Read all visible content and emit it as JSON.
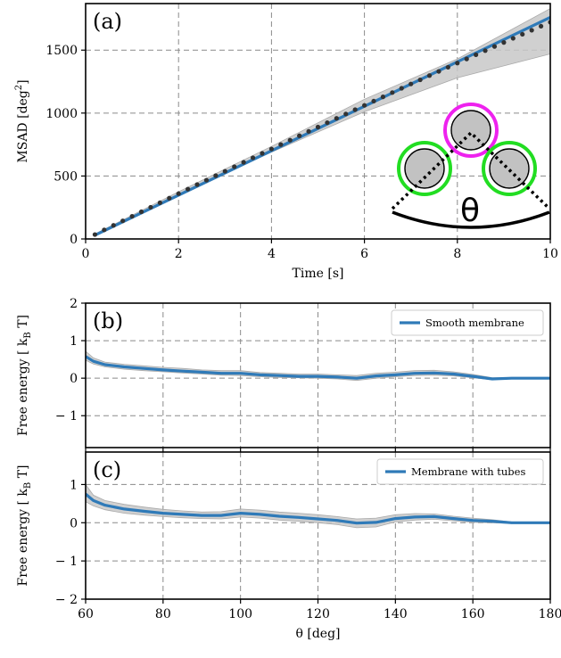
{
  "chart_data": [
    {
      "type": "line",
      "panel_label": "(a)",
      "xlabel": "Time [s]",
      "ylabel": "MSAD [deg",
      "ylabel_sup": "2",
      "ylabel_end": "]",
      "xlim": [
        0,
        10
      ],
      "ylim": [
        0,
        1870
      ],
      "xticks": [
        0,
        2,
        4,
        6,
        8,
        10
      ],
      "yticks": [
        0,
        500,
        1000,
        1500
      ],
      "grid": true,
      "series": [
        {
          "style": "solid",
          "color": "#2f7ab8",
          "x": [
            0.2,
            10
          ],
          "y": [
            30,
            1760
          ]
        },
        {
          "style": "dotted-markers",
          "color": "#333333",
          "x": [
            0.2,
            0.4,
            0.6,
            0.8,
            1.0,
            1.2,
            1.4,
            1.6,
            1.8,
            2.0,
            2.2,
            2.4,
            2.6,
            2.8,
            3.0,
            3.2,
            3.4,
            3.6,
            3.8,
            4.0,
            4.2,
            4.4,
            4.6,
            4.8,
            5.0,
            5.2,
            5.4,
            5.6,
            5.8,
            6.0,
            6.2,
            6.4,
            6.6,
            6.8,
            7.0,
            7.2,
            7.4,
            7.6,
            7.8,
            8.0,
            8.2,
            8.4,
            8.6,
            8.8,
            9.0,
            9.2,
            9.4,
            9.6,
            9.8,
            10.0
          ],
          "y": [
            35,
            72,
            108,
            144,
            180,
            216,
            252,
            288,
            324,
            360,
            396,
            432,
            467,
            503,
            538,
            574,
            609,
            645,
            680,
            715,
            750,
            785,
            820,
            855,
            889,
            924,
            958,
            993,
            1027,
            1061,
            1095,
            1129,
            1163,
            1197,
            1231,
            1264,
            1298,
            1331,
            1364,
            1397,
            1430,
            1463,
            1496,
            1529,
            1561,
            1594,
            1626,
            1658,
            1690,
            1722
          ]
        }
      ],
      "band": {
        "x": [
          0.2,
          2,
          4,
          6,
          8,
          10
        ],
        "lower": [
          28,
          350,
          690,
          1010,
          1280,
          1470
        ],
        "upper": [
          40,
          375,
          735,
          1110,
          1430,
          1830
        ]
      },
      "inset": {
        "label": "θ",
        "beads": [
          "#22dd22",
          "#ee22ee",
          "#22dd22"
        ]
      }
    },
    {
      "type": "line",
      "panel_label": "(b)",
      "ylabel_prefix": "Free energy [",
      "ylabel_unit": "k",
      "ylabel_sub": "B",
      "ylabel_end": "T]",
      "xlim": [
        60,
        180
      ],
      "ylim": [
        -1.85,
        2
      ],
      "xticks": [
        60,
        80,
        100,
        120,
        140,
        160,
        180
      ],
      "yticks": [
        -1,
        0,
        1,
        2
      ],
      "ytick_labels": [
        "− 1",
        "0",
        "1",
        "2"
      ],
      "grid": true,
      "legend": "Smooth membrane",
      "legend_loc": "upper-right",
      "series": [
        {
          "name": "Smooth membrane",
          "color": "#2f7ab8",
          "x": [
            60,
            62,
            65,
            70,
            75,
            80,
            85,
            90,
            95,
            100,
            105,
            110,
            115,
            120,
            125,
            130,
            135,
            140,
            145,
            150,
            155,
            160,
            165,
            170,
            175,
            180
          ],
          "y": [
            0.58,
            0.45,
            0.36,
            0.3,
            0.26,
            0.22,
            0.19,
            0.16,
            0.13,
            0.13,
            0.09,
            0.07,
            0.05,
            0.05,
            0.03,
            0.0,
            0.06,
            0.09,
            0.13,
            0.14,
            0.11,
            0.05,
            -0.02,
            0.0,
            0.0,
            0.0
          ]
        }
      ],
      "band": {
        "x": [
          60,
          62,
          65,
          70,
          75,
          80,
          85,
          90,
          95,
          100,
          105,
          110,
          115,
          120,
          125,
          130,
          135,
          140,
          145,
          150,
          155,
          160,
          165,
          170,
          175,
          180
        ],
        "lower": [
          0.48,
          0.38,
          0.3,
          0.24,
          0.2,
          0.17,
          0.14,
          0.11,
          0.08,
          0.07,
          0.04,
          0.02,
          0.01,
          0.0,
          -0.02,
          -0.06,
          0.0,
          0.04,
          0.07,
          0.08,
          0.06,
          0.01,
          -0.04,
          -0.01,
          -0.01,
          -0.01
        ],
        "upper": [
          0.72,
          0.54,
          0.43,
          0.37,
          0.33,
          0.29,
          0.26,
          0.22,
          0.2,
          0.2,
          0.15,
          0.13,
          0.11,
          0.11,
          0.09,
          0.07,
          0.13,
          0.16,
          0.2,
          0.21,
          0.17,
          0.1,
          0.01,
          0.01,
          0.01,
          0.01
        ]
      }
    },
    {
      "type": "line",
      "panel_label": "(c)",
      "xlabel": "θ [deg]",
      "ylabel_prefix": "Free energy [",
      "ylabel_unit": "k",
      "ylabel_sub": "B",
      "ylabel_end": "T]",
      "xlim": [
        60,
        180
      ],
      "ylim": [
        -2,
        1.85
      ],
      "xticks": [
        60,
        80,
        100,
        120,
        140,
        160,
        180
      ],
      "yticks": [
        -2,
        -1,
        0,
        1
      ],
      "ytick_labels": [
        "− 2",
        "− 1",
        "0",
        "1"
      ],
      "grid": true,
      "legend": "Membrane with tubes",
      "legend_loc": "upper-right",
      "series": [
        {
          "name": "Membrane with tubes",
          "color": "#2f7ab8",
          "x": [
            60,
            62,
            65,
            70,
            75,
            80,
            85,
            90,
            95,
            100,
            105,
            110,
            115,
            120,
            125,
            130,
            135,
            140,
            145,
            150,
            155,
            160,
            165,
            170,
            175,
            180
          ],
          "y": [
            0.75,
            0.58,
            0.46,
            0.36,
            0.3,
            0.25,
            0.22,
            0.19,
            0.19,
            0.25,
            0.22,
            0.17,
            0.14,
            0.1,
            0.06,
            -0.01,
            0.01,
            0.11,
            0.15,
            0.16,
            0.11,
            0.06,
            0.04,
            0.0,
            0.0,
            0.0
          ]
        }
      ],
      "band": {
        "x": [
          60,
          62,
          65,
          70,
          75,
          80,
          85,
          90,
          95,
          100,
          105,
          110,
          115,
          120,
          125,
          130,
          135,
          140,
          145,
          150,
          155,
          160,
          165,
          170,
          175,
          180
        ],
        "lower": [
          0.55,
          0.44,
          0.34,
          0.25,
          0.2,
          0.16,
          0.13,
          0.11,
          0.1,
          0.15,
          0.12,
          0.07,
          0.04,
          0.0,
          -0.05,
          -0.13,
          -0.11,
          0.02,
          0.07,
          0.09,
          0.05,
          0.01,
          0.0,
          -0.02,
          -0.02,
          -0.02
        ],
        "upper": [
          1.0,
          0.72,
          0.58,
          0.48,
          0.41,
          0.35,
          0.31,
          0.28,
          0.29,
          0.36,
          0.33,
          0.28,
          0.25,
          0.21,
          0.16,
          0.1,
          0.12,
          0.21,
          0.24,
          0.23,
          0.17,
          0.12,
          0.08,
          0.02,
          0.02,
          0.02
        ]
      }
    }
  ]
}
